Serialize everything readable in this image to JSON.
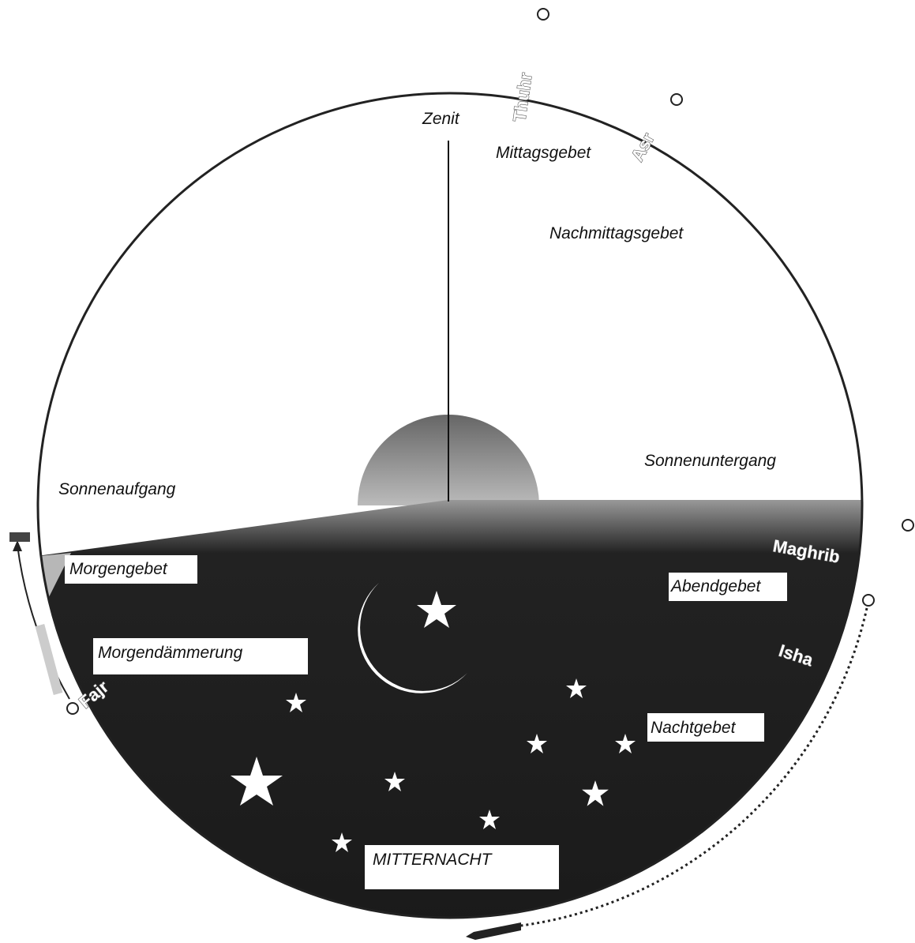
{
  "zenith": "Zenit",
  "day": {
    "noon_prayer": "Mittagsgebet",
    "afternoon_prayer": "Nachmittagsgebet",
    "sunrise": "Sonnenaufgang",
    "sunset": "Sonnenuntergang"
  },
  "night": {
    "morning_prayer": "Morgengebet",
    "evening_prayer": "Abendgebet",
    "dawn": "Morgendämmerung",
    "night_prayer": "Nachtgebet",
    "midnight": "MITTERNACHT"
  },
  "prayers": {
    "thuhr": "Thuhr",
    "asr": "Asr",
    "maghrib": "Maghrib",
    "isha": "Isha",
    "fajr": "Fajr"
  }
}
